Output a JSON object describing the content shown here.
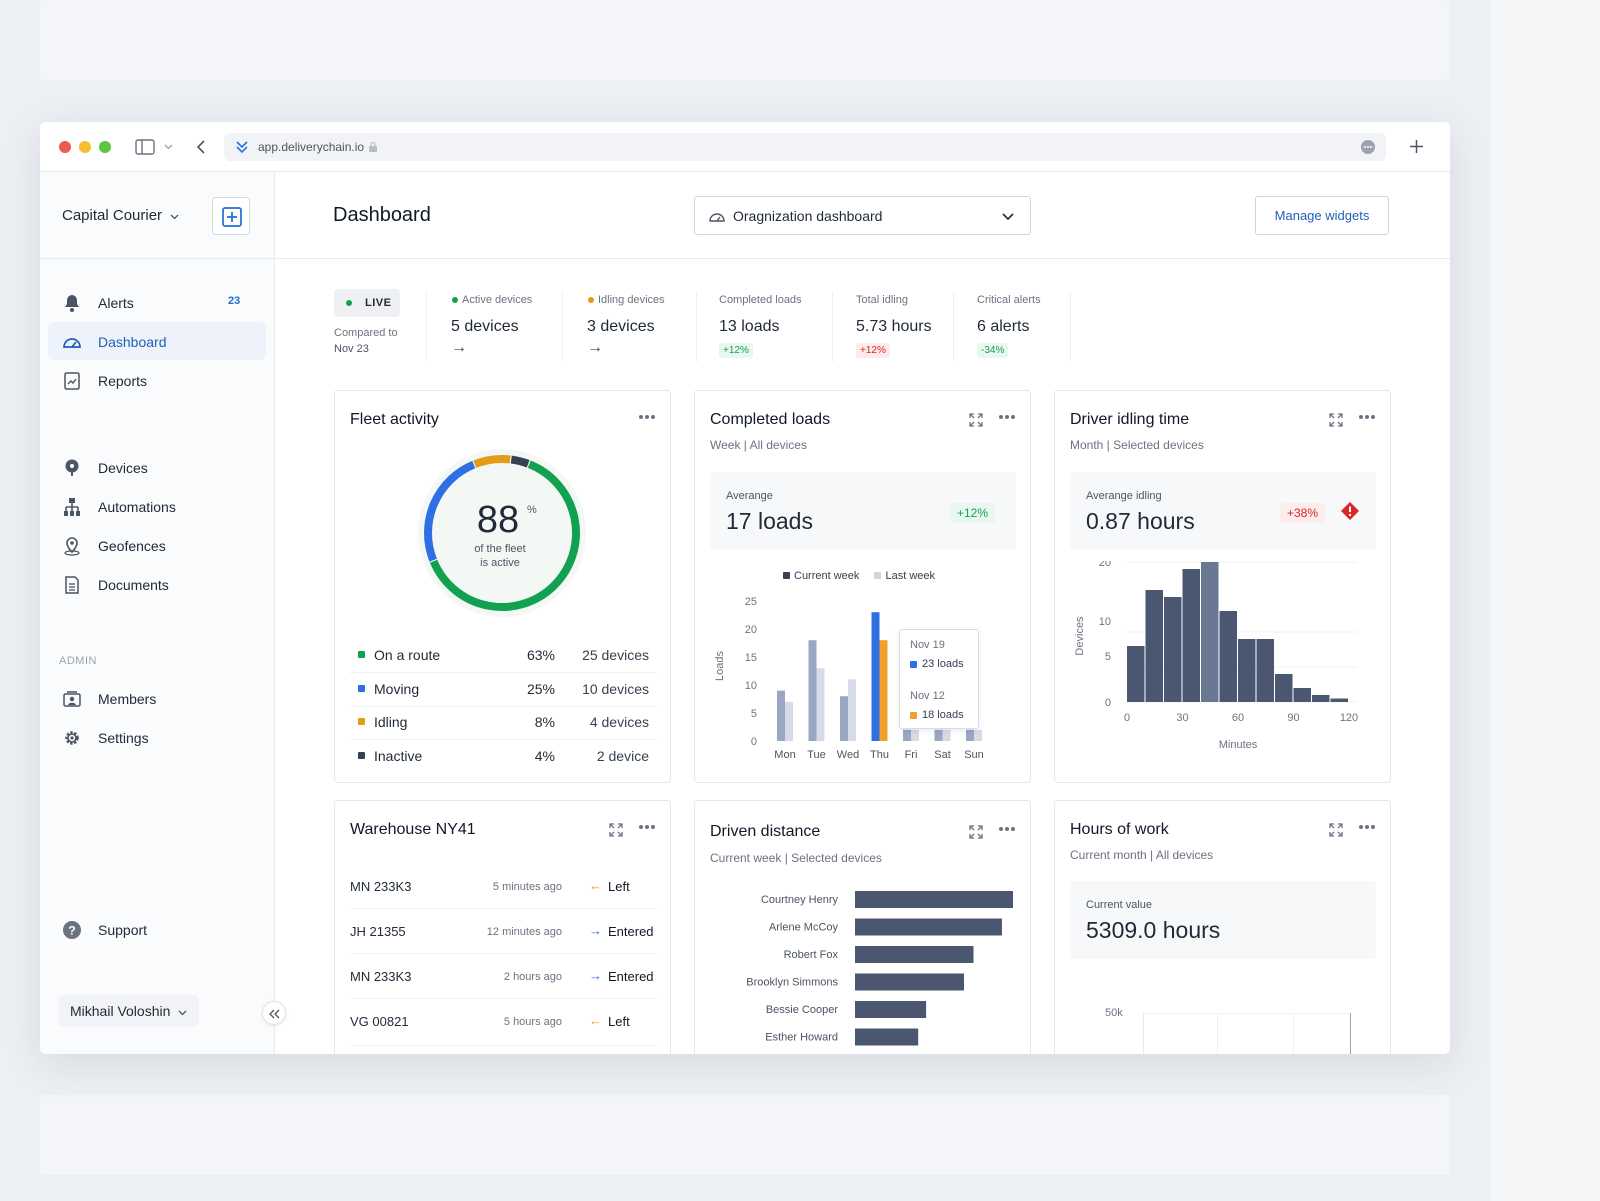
{
  "browser": {
    "url": "app.deliverychain.io"
  },
  "sidebar": {
    "org_name": "Capital Courier",
    "items_top": [
      {
        "label": "Alerts",
        "badge": "23"
      },
      {
        "label": "Dashboard"
      },
      {
        "label": "Reports"
      }
    ],
    "items_mid": [
      {
        "label": "Devices"
      },
      {
        "label": "Automations"
      },
      {
        "label": "Geofences"
      },
      {
        "label": "Documents"
      }
    ],
    "admin_heading": "ADMIN",
    "items_admin": [
      {
        "label": "Members"
      },
      {
        "label": "Settings"
      }
    ],
    "support": "Support",
    "user": "Mikhail Voloshin"
  },
  "header": {
    "title": "Dashboard",
    "dashboard_select": "Oragnization dashboard",
    "manage_button": "Manage widgets"
  },
  "stats": {
    "live": "LIVE",
    "compared_line1": "Compared to",
    "compared_line2": "Nov 23",
    "items": [
      {
        "label": "Active devices",
        "value": "5 devices",
        "trend": "→"
      },
      {
        "label": "Idling devices",
        "value": "3 devices",
        "trend": "→"
      },
      {
        "label": "Completed loads",
        "value": "13 loads",
        "change": "+12%"
      },
      {
        "label": "Total idling",
        "value": "5.73 hours",
        "change": "+12%"
      },
      {
        "label": "Critical alerts",
        "value": "6 alerts",
        "change": "-34%"
      }
    ]
  },
  "fleet": {
    "title": "Fleet activity",
    "center_value": "88",
    "center_unit": "%",
    "center_line1": "of the fleet",
    "center_line2": "is active",
    "rows": [
      {
        "label": "On a route",
        "pct": "63%",
        "devices": "25 devices",
        "color": "#12a150",
        "value": 63
      },
      {
        "label": "Moving",
        "pct": "25%",
        "devices": "10 devices",
        "color": "#2f6fe4",
        "value": 25
      },
      {
        "label": "Idling",
        "pct": "8%",
        "devices": "4 devices",
        "color": "#e39b19",
        "value": 8
      },
      {
        "label": "Inactive",
        "pct": "4%",
        "devices": "2 device",
        "color": "#374151",
        "value": 4
      }
    ]
  },
  "completed": {
    "title": "Completed loads",
    "subtitle": "Week | All devices",
    "avg_label": "Averange",
    "avg_value": "17 loads",
    "avg_change": "+12%",
    "legend_current": "Current week",
    "legend_last": "Last week",
    "tooltip": {
      "date1": "Nov 19",
      "val1": "23 loads",
      "date2": "Nov 12",
      "val2": "18 loads"
    }
  },
  "idling": {
    "title": "Driver idling time",
    "subtitle": "Month | Selected devices",
    "avg_label": "Averange idling",
    "avg_value": "0.87 hours",
    "avg_change": "+38%"
  },
  "warehouse": {
    "title": "Warehouse NY41",
    "rows": [
      {
        "plate": "MN 233K3",
        "time": "5 minutes ago",
        "dir": "←",
        "status": "Left"
      },
      {
        "plate": "JH 21355",
        "time": "12 minutes ago",
        "dir": "→",
        "status": "Entered"
      },
      {
        "plate": "MN 233K3",
        "time": "2 hours ago",
        "dir": "→",
        "status": "Entered"
      },
      {
        "plate": "VG 00821",
        "time": "5 hours ago",
        "dir": "←",
        "status": "Left"
      }
    ]
  },
  "distance": {
    "title": "Driven distance",
    "subtitle": "Current week | Selected devices"
  },
  "hours": {
    "title": "Hours of work",
    "subtitle": "Current month | All devices",
    "value_label": "Current value",
    "value": "5309.0 hours",
    "axis_tick": "50k"
  },
  "chart_data": [
    {
      "type": "bar",
      "title": "Completed loads",
      "xlabel": "",
      "ylabel": "Loads",
      "categories": [
        "Mon",
        "Tue",
        "Wed",
        "Thu",
        "Fri",
        "Sat",
        "Sun"
      ],
      "yticks": [
        0,
        5,
        10,
        15,
        20,
        25
      ],
      "ylim": [
        0,
        25
      ],
      "series": [
        {
          "name": "Current week",
          "values": [
            9,
            18,
            8,
            23,
            2,
            2,
            2
          ]
        },
        {
          "name": "Last week",
          "values": [
            7,
            13,
            11,
            18,
            2,
            2,
            2
          ]
        }
      ]
    },
    {
      "type": "bar",
      "title": "Driver idling time",
      "xlabel": "Minutes",
      "ylabel": "Devices",
      "xticks": [
        0,
        30,
        60,
        90,
        120
      ],
      "yticks": [
        0,
        5,
        10,
        20
      ],
      "ylim": [
        0,
        20
      ],
      "bin_starts": [
        0,
        10,
        20,
        30,
        40,
        50,
        60,
        70,
        80,
        90,
        100,
        110
      ],
      "values": [
        8,
        16,
        15,
        19,
        20,
        13,
        9,
        9,
        4,
        2,
        1,
        0.5
      ]
    },
    {
      "type": "bar",
      "orientation": "horizontal",
      "title": "Driven distance",
      "categories": [
        "Courtney Henry",
        "Arlene McCoy",
        "Robert Fox",
        "Brooklyn Simmons",
        "Bessie Cooper",
        "Esther Howard"
      ],
      "values": [
        100,
        93,
        75,
        69,
        45,
        40
      ]
    }
  ]
}
